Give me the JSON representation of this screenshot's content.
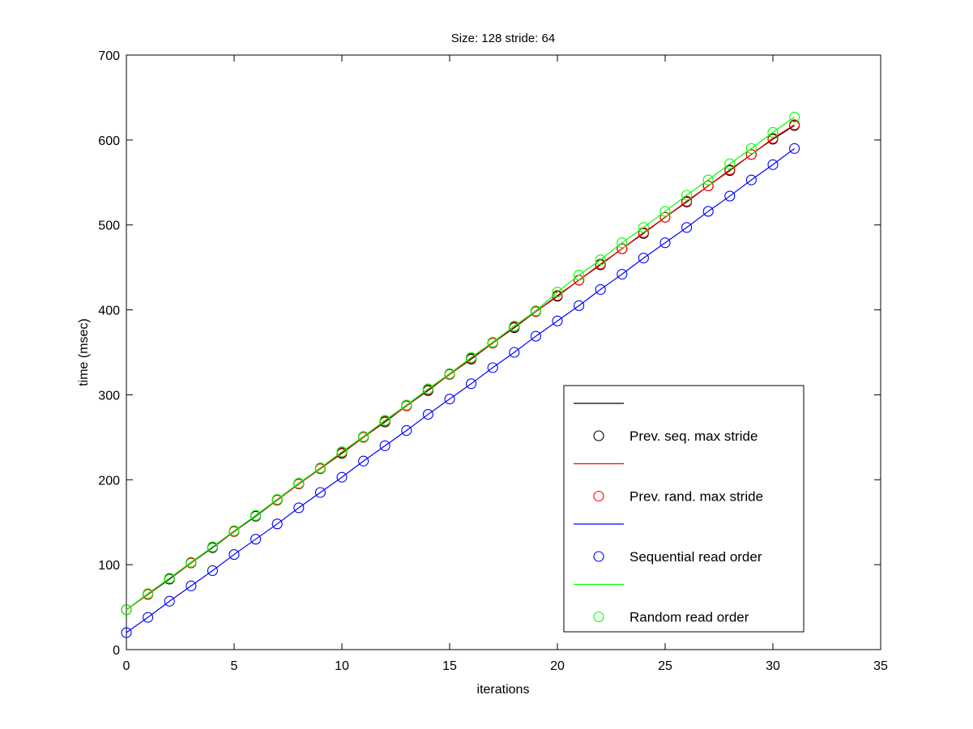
{
  "chart_data": {
    "type": "line",
    "title": "Size: 128 stride: 64",
    "xlabel": "iterations",
    "ylabel": "time (msec)",
    "xlim": [
      0,
      35
    ],
    "ylim": [
      0,
      700
    ],
    "xticks": [
      0,
      5,
      10,
      15,
      20,
      25,
      30,
      35
    ],
    "yticks": [
      0,
      100,
      200,
      300,
      400,
      500,
      600,
      700
    ],
    "grid": false,
    "legend_position": "bottom-right",
    "markers": "open-circle",
    "x": [
      0,
      1,
      2,
      3,
      4,
      5,
      6,
      7,
      8,
      9,
      10,
      11,
      12,
      13,
      14,
      15,
      16,
      17,
      18,
      19,
      20,
      21,
      22,
      23,
      24,
      25,
      26,
      27,
      28,
      29,
      30,
      31
    ],
    "series": [
      {
        "name": "Prev. seq. max stride",
        "color": "#000000",
        "values": [
          47,
          65,
          83,
          102,
          120,
          139,
          157,
          176,
          195,
          213,
          231,
          250,
          268,
          287,
          305,
          324,
          342,
          361,
          379,
          398,
          416,
          435,
          453,
          472,
          490,
          509,
          527,
          546,
          564,
          583,
          601,
          617
        ]
      },
      {
        "name": "Prev. rand. max stride",
        "color": "#ff0000",
        "values": [
          47,
          65,
          84,
          102,
          121,
          139,
          158,
          176,
          195,
          213,
          232,
          250,
          269,
          287,
          306,
          324,
          343,
          361,
          380,
          398,
          417,
          435,
          454,
          472,
          491,
          509,
          528,
          546,
          565,
          583,
          602,
          618
        ]
      },
      {
        "name": "Sequential read order",
        "color": "#0000ff",
        "values": [
          20,
          38,
          57,
          75,
          93,
          112,
          130,
          148,
          167,
          185,
          203,
          222,
          240,
          258,
          277,
          295,
          313,
          332,
          350,
          369,
          387,
          405,
          424,
          442,
          461,
          479,
          497,
          516,
          534,
          553,
          571,
          590
        ]
      },
      {
        "name": "Random read order",
        "color": "#00ff00",
        "values": [
          47,
          66,
          84,
          103,
          121,
          140,
          158,
          177,
          196,
          214,
          233,
          251,
          270,
          288,
          307,
          325,
          344,
          362,
          381,
          399,
          421,
          441,
          459,
          479,
          497,
          516,
          535,
          553,
          572,
          590,
          609,
          627
        ]
      }
    ]
  }
}
